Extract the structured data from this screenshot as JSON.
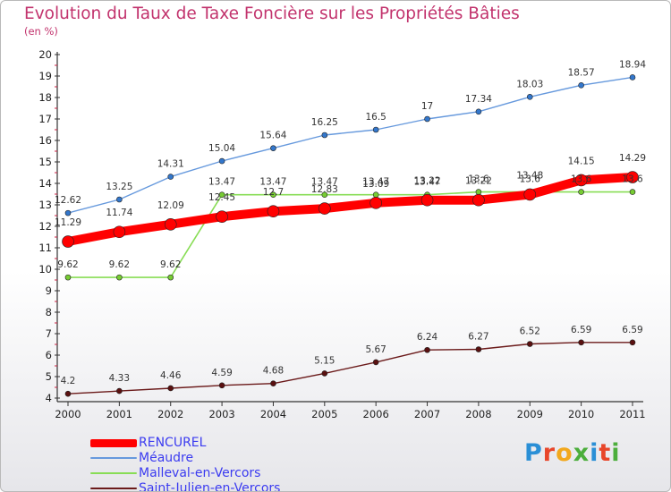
{
  "title": "Evolution du Taux de Taxe Foncière sur les Propriétés Bâties",
  "unit_label": "(en %)",
  "logo_text": "Proxiti",
  "chart_data": {
    "type": "line",
    "title": "Evolution du Taux de Taxe Foncière sur les Propriétés Bâties",
    "ylabel": "(en %)",
    "xlabel": "",
    "x": [
      "2000",
      "2001",
      "2002",
      "2003",
      "2004",
      "2005",
      "2006",
      "2007",
      "2008",
      "2009",
      "2010",
      "2011"
    ],
    "ylim": [
      4,
      20
    ],
    "yticks": [
      4,
      5,
      6,
      7,
      8,
      9,
      10,
      11,
      12,
      13,
      14,
      15,
      16,
      17,
      18,
      19,
      20
    ],
    "grid": false,
    "legend_position": "bottom-left",
    "series": [
      {
        "name": "RENCUREL",
        "color": "#ff0000",
        "values": [
          11.29,
          11.74,
          12.09,
          12.45,
          12.7,
          12.83,
          13.09,
          13.22,
          13.22,
          13.48,
          14.15,
          14.29
        ],
        "labels": [
          "11.29",
          "11.74",
          "12.09",
          "12.45",
          "12.7",
          "12.83",
          "13.09",
          "13.22",
          "13.22",
          "13.48",
          "14.15",
          "14.29"
        ]
      },
      {
        "name": "Méaudre",
        "color": "#6699dd",
        "values": [
          12.62,
          13.25,
          14.31,
          15.04,
          15.64,
          16.25,
          16.5,
          17,
          17.34,
          18.03,
          18.57,
          18.94
        ],
        "labels": [
          "12.62",
          "13.25",
          "14.31",
          "15.04",
          "15.64",
          "16.25",
          "16.5",
          "17",
          "17.34",
          "18.03",
          "18.57",
          "18.94"
        ]
      },
      {
        "name": "Malleval-en-Vercors",
        "color": "#88dd55",
        "values": [
          9.62,
          9.62,
          9.62,
          13.47,
          13.47,
          13.47,
          13.47,
          13.47,
          13.6,
          13.6,
          13.6,
          13.6
        ],
        "labels": [
          "9.62",
          "9.62",
          "9.62",
          "13.47",
          "13.47",
          "13.47",
          "13.47",
          "13.47",
          "13.6",
          "13.6",
          "13.6",
          "13.6"
        ]
      },
      {
        "name": "Saint-Julien-en-Vercors",
        "color": "#6b1a1a",
        "values": [
          4.2,
          4.33,
          4.46,
          4.59,
          4.68,
          5.15,
          5.67,
          6.24,
          6.27,
          6.52,
          6.59,
          6.59
        ],
        "labels": [
          "4.2",
          "4.33",
          "4.46",
          "4.59",
          "4.68",
          "5.15",
          "5.67",
          "6.24",
          "6.27",
          "6.52",
          "6.59",
          "6.59"
        ]
      }
    ]
  }
}
